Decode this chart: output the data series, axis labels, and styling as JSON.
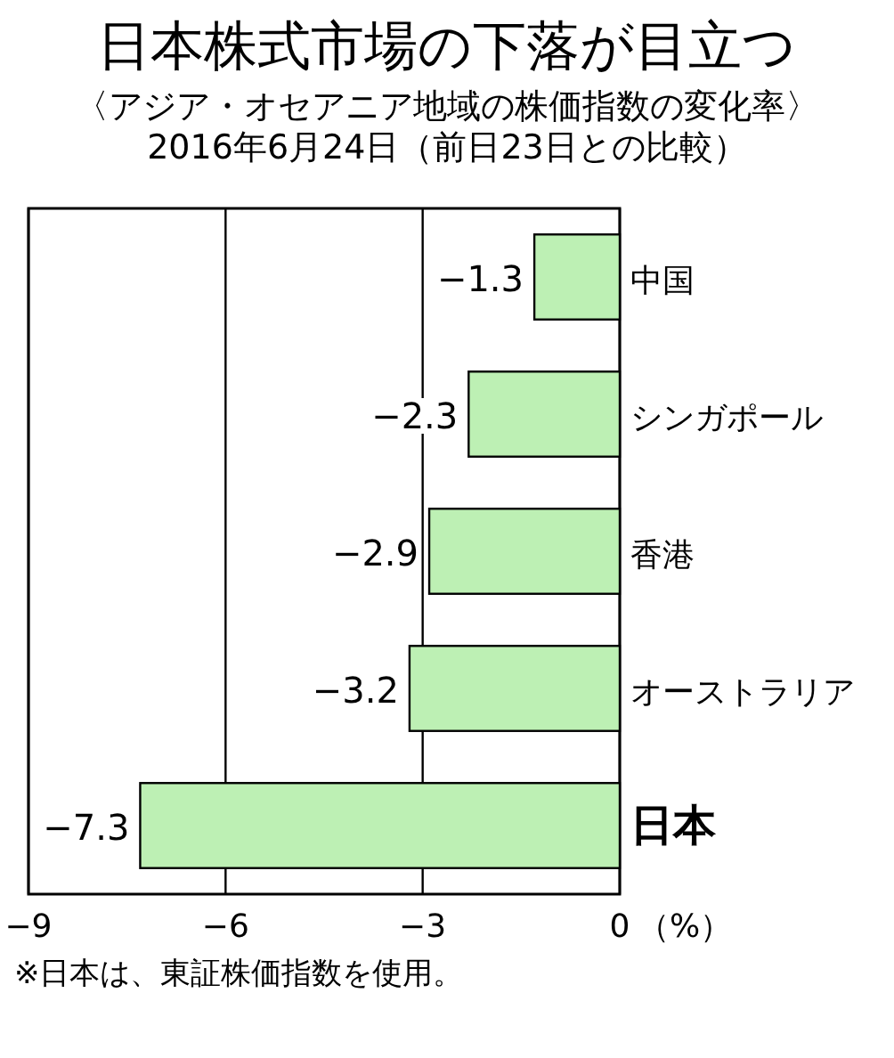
{
  "chart_data": {
    "type": "bar",
    "orientation": "horizontal",
    "title": "日本株式市場の下落が目立つ",
    "subtitle": "〈アジア・オセアニア地域の株価指数の変化率〉\n2016年6月24日（前日23日との比較）",
    "categories": [
      "中国",
      "シンガポール",
      "香港",
      "オーストラリア",
      "日本"
    ],
    "values": [
      -1.3,
      -2.3,
      -2.9,
      -3.2,
      -7.3
    ],
    "color": "#bdf0b4",
    "xlim": [
      -9,
      0
    ],
    "xticks": [
      -9,
      -6,
      -3,
      0
    ],
    "xlabel": "（%）",
    "grid": "x",
    "data_labels": true,
    "annotations": [
      "※日本は、東証株価指数を使用。"
    ]
  }
}
